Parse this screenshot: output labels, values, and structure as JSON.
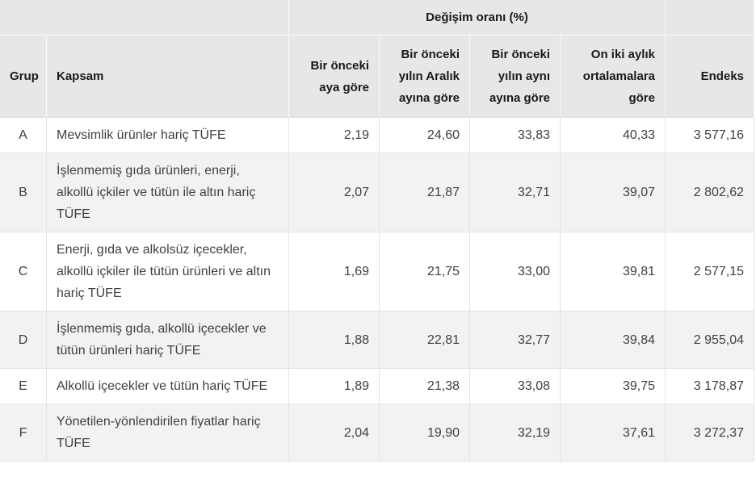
{
  "chart_data": {
    "type": "table",
    "title": "Değişim oranı (%)",
    "title_note": "spans the four change-rate columns",
    "columns": [
      "Grup",
      "Kapsam",
      "Bir önceki aya göre",
      "Bir önceki yılın Aralık ayına göre",
      "Bir önceki yılın aynı ayına göre",
      "On iki aylık ortalamalara göre",
      "Endeks"
    ],
    "rows": [
      [
        "A",
        "Mevsimlik ürünler hariç TÜFE",
        "2,19",
        "24,60",
        "33,83",
        "40,33",
        "3 577,16"
      ],
      [
        "B",
        "İşlenmemiş gıda ürünleri, enerji, alkollü içkiler ve tütün ile altın hariç TÜFE",
        "2,07",
        "21,87",
        "32,71",
        "39,07",
        "2 802,62"
      ],
      [
        "C",
        "Enerji, gıda ve alkolsüz içecekler, alkollü içkiler ile tütün ürünleri ve altın hariç TÜFE",
        "1,69",
        "21,75",
        "33,00",
        "39,81",
        "2 577,15"
      ],
      [
        "D",
        "İşlenmemiş gıda, alkollü içecekler ve tütün ürünleri hariç TÜFE",
        "1,88",
        "22,81",
        "32,77",
        "39,84",
        "2 955,04"
      ],
      [
        "E",
        "Alkollü içecekler ve tütün hariç TÜFE",
        "1,89",
        "21,38",
        "33,08",
        "39,75",
        "3 178,87"
      ],
      [
        "F",
        "Yönetilen-yönlendirilen fiyatlar hariç TÜFE",
        "2,04",
        "19,90",
        "32,19",
        "37,61",
        "3 272,37"
      ]
    ]
  },
  "colors": {
    "header_bg": "#e7e7e7",
    "header_text": "#1a1a1a",
    "header_border": "#fafafa",
    "row_bg": "#ffffff",
    "row_alt_bg": "#f2f2f2",
    "cell_border": "#e3e3e3",
    "body_text": "#404040"
  }
}
